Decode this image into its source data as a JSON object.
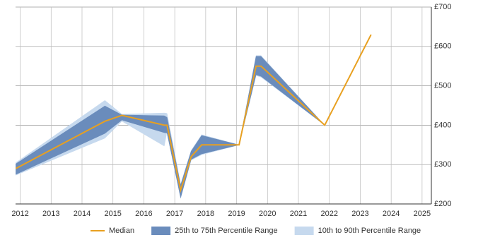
{
  "chart_data": {
    "type": "line",
    "x": [
      2011.86,
      2014.74,
      2015.29,
      2016.66,
      2016.75,
      2017.19,
      2017.53,
      2017.87,
      2019.08,
      2019.63,
      2019.79,
      2021.85,
      2023.35
    ],
    "series": [
      {
        "name": "Median",
        "color": "#e8a020",
        "values": [
          290,
          410,
          425,
          400,
          400,
          235,
          320,
          350,
          350,
          550,
          550,
          400,
          630
        ]
      },
      {
        "name": "25th to 75th Percentile Range",
        "color": "#6a8cbc",
        "low": [
          275,
          379,
          413,
          381,
          380,
          216,
          313,
          327,
          350,
          528,
          524,
          400,
          630
        ],
        "high": [
          302,
          449,
          426,
          424,
          420,
          248,
          334,
          374,
          350,
          575,
          575,
          400,
          630
        ]
      },
      {
        "name": "10th to 90th Percentile Range",
        "color": "#c6d9ee",
        "low": [
          273,
          367,
          410,
          347,
          385,
          214,
          311,
          325,
          350,
          526,
          522,
          400,
          630
        ],
        "high": [
          305,
          463,
          428,
          431,
          430,
          250,
          336,
          376,
          350,
          577,
          577,
          400,
          630
        ]
      }
    ],
    "xlim": [
      2011.85,
      2025.3
    ],
    "xticks": [
      2012,
      2013,
      2014,
      2015,
      2016,
      2017,
      2018,
      2019,
      2020,
      2021,
      2022,
      2023,
      2024,
      2025
    ],
    "ylim": [
      200,
      700
    ],
    "yticks": [
      {
        "value": 200,
        "label": "£200"
      },
      {
        "value": 300,
        "label": "£300"
      },
      {
        "value": 400,
        "label": "£400"
      },
      {
        "value": 500,
        "label": "£500"
      },
      {
        "value": 600,
        "label": "£600"
      },
      {
        "value": 700,
        "label": "£700"
      }
    ],
    "grid": true
  }
}
